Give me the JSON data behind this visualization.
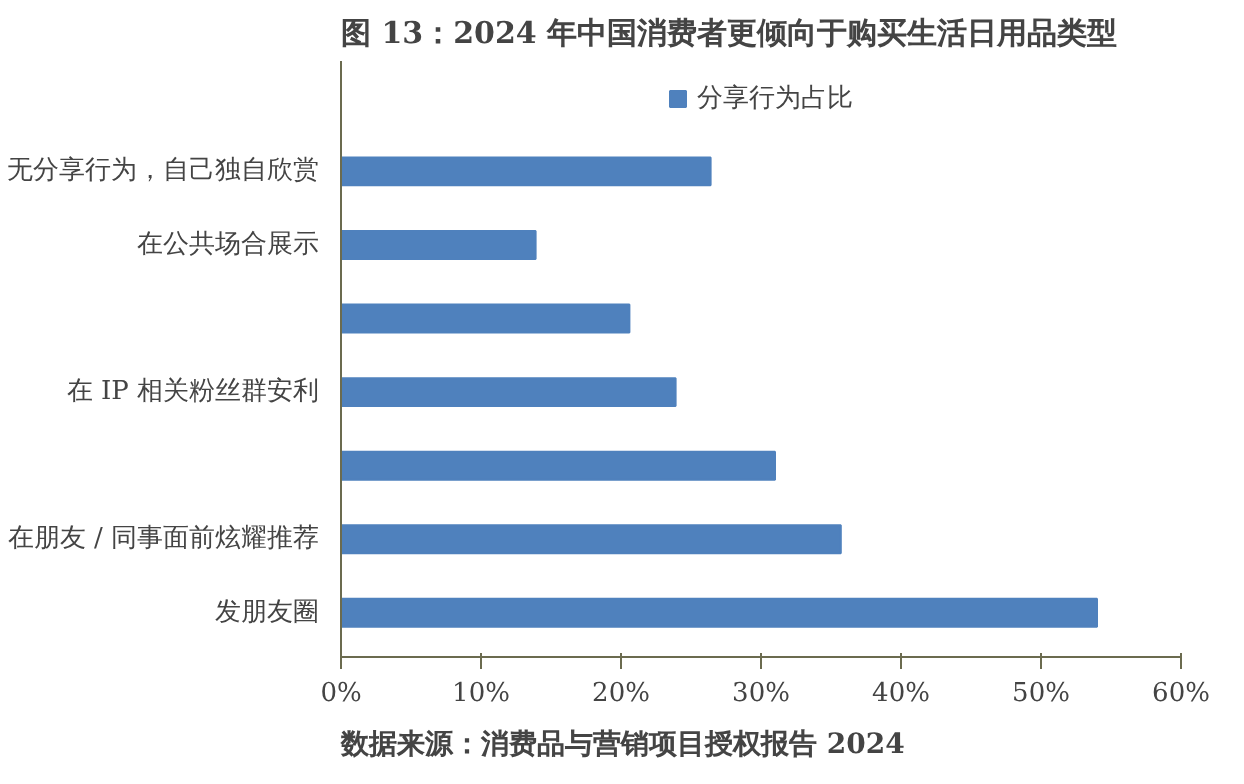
{
  "chart_data": {
    "type": "bar",
    "orientation": "horizontal",
    "title": "图 13：2024 年中国消费者更倾向于购买生活日用品类型",
    "categories": [
      "无分享行为，自己独自欣赏",
      "在公共场合展示",
      null,
      "在 IP 相关粉丝群安利",
      null,
      "在朋友 / 同事面前炫耀推荐",
      "发朋友圈"
    ],
    "series": [
      {
        "name": "分享行为占比",
        "color": "#4f81bd",
        "values": [
          26.4,
          13.9,
          20.6,
          23.9,
          31.0,
          35.7,
          54.0
        ]
      }
    ],
    "xlim": [
      0,
      60
    ],
    "xticks": [
      {
        "value": 0,
        "label": "0%"
      },
      {
        "value": 10,
        "label": "10%"
      },
      {
        "value": 20,
        "label": "20%"
      },
      {
        "value": 30,
        "label": "30%"
      },
      {
        "value": 40,
        "label": "40%"
      },
      {
        "value": 50,
        "label": "50%"
      },
      {
        "value": 60,
        "label": "60%"
      }
    ],
    "grid": false,
    "legend": "top",
    "annotations": [
      "数据来源：消费品与营销项目授权报告 2024"
    ]
  }
}
